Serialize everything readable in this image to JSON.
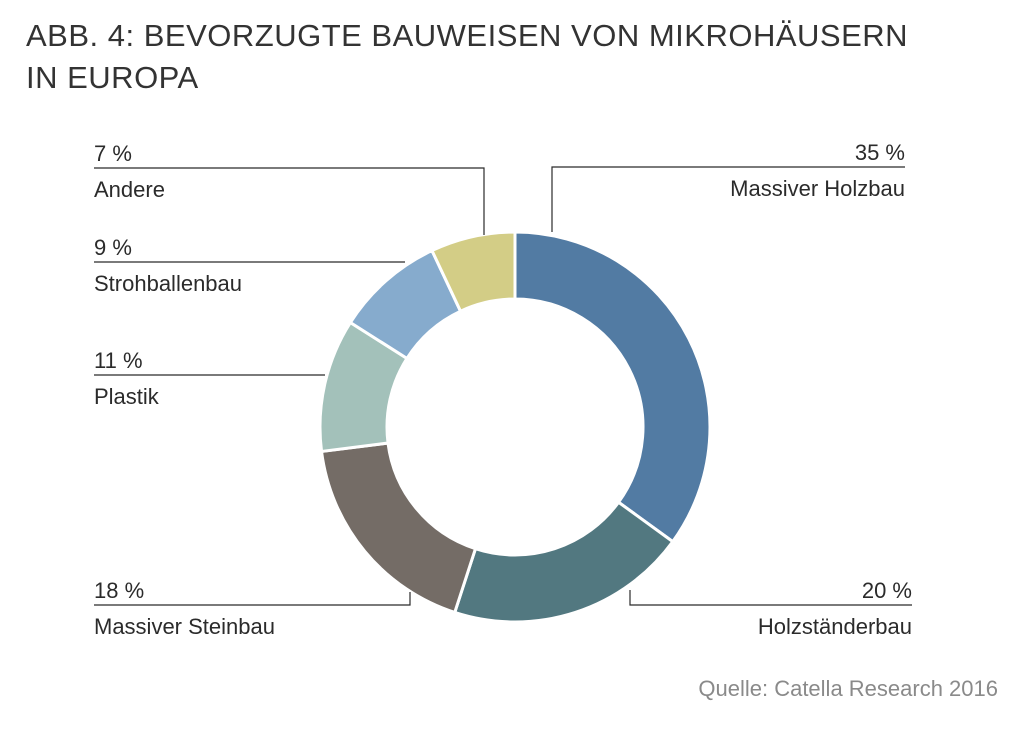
{
  "title": [
    "ABB. 4: BEVORZUGTE BAUWEISEN VON MIKROHÄUSERN",
    "IN EUROPA"
  ],
  "source": "Quelle: Catella Research 2016",
  "colors": {
    "Massiver Holzbau": "#527ba3",
    "Holzständerbau": "#527880",
    "Massiver Steinbau": "#746c66",
    "Plastik": "#a3c1ba",
    "Strohballenbau": "#86abcd",
    "Andere": "#d3cd86"
  },
  "chart_data": {
    "type": "pie",
    "variant": "donut",
    "title": "ABB. 4: BEVORZUGTE BAUWEISEN VON MIKROHÄUSERN IN EUROPA",
    "slices": [
      {
        "label": "Massiver Holzbau",
        "value": 35,
        "value_label": "35 %"
      },
      {
        "label": "Holzständerbau",
        "value": 20,
        "value_label": "20 %"
      },
      {
        "label": "Massiver Steinbau",
        "value": 18,
        "value_label": "18 %"
      },
      {
        "label": "Plastik",
        "value": 11,
        "value_label": "11 %"
      },
      {
        "label": "Strohballenbau",
        "value": 9,
        "value_label": "9 %"
      },
      {
        "label": "Andere",
        "value": 7,
        "value_label": "7 %"
      }
    ],
    "order": "clockwise from top"
  }
}
